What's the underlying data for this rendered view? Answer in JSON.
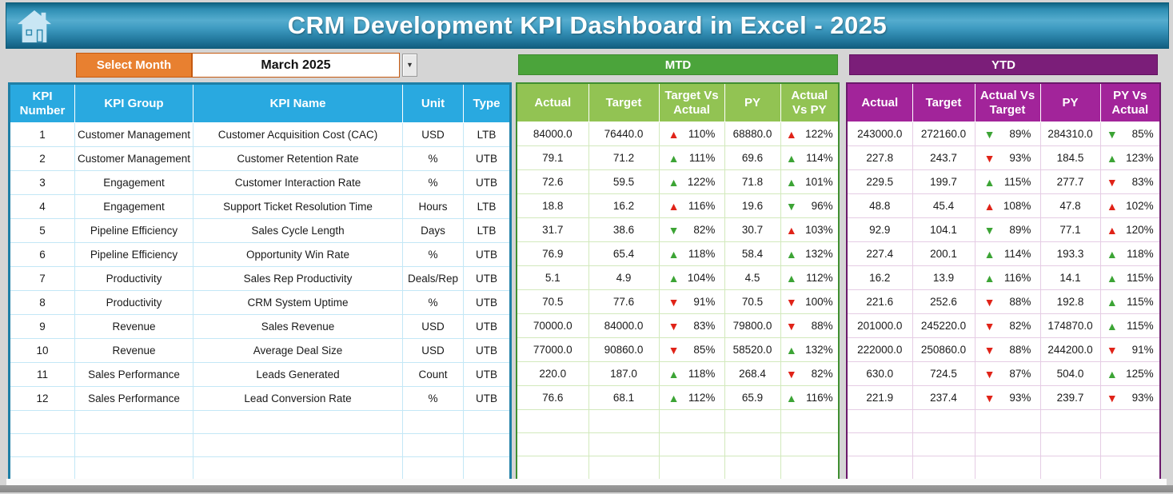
{
  "header": {
    "title": "CRM Development KPI Dashboard in Excel - 2025"
  },
  "controls": {
    "select_month_label": "Select Month",
    "selected_month": "March 2025"
  },
  "sections": {
    "mtd_title": "MTD",
    "ytd_title": "YTD"
  },
  "icons": {
    "home": "home-icon",
    "dropdown": "▼",
    "up_arrow": "▲",
    "down_arrow": "▼"
  },
  "colors": {
    "kpi_header_blue": "#29A9E0",
    "mtd_banner_green": "#4BA43B",
    "mtd_header_green": "#92C353",
    "ytd_banner_purple": "#7B1E79",
    "ytd_header_purple": "#A2249A",
    "select_month_orange": "#E88030",
    "arrow_red": "#E02318",
    "arrow_green": "#3CA435"
  },
  "kpi_table": {
    "headers": [
      "KPI Number",
      "KPI Group",
      "KPI Name",
      "Unit",
      "Type"
    ]
  },
  "mtd_table": {
    "headers": [
      "Actual",
      "Target",
      "Target Vs Actual",
      "PY",
      "Actual Vs PY"
    ]
  },
  "ytd_table": {
    "headers": [
      "Actual",
      "Target",
      "Actual Vs Target",
      "PY",
      "PY Vs Actual"
    ]
  },
  "empty_row_count": 3,
  "rows": [
    {
      "number": "1",
      "group": "Customer Management",
      "name": "Customer Acquisition Cost (CAC)",
      "unit": "USD",
      "type": "LTB",
      "mtd": {
        "actual": "84000.0",
        "target": "76440.0",
        "target_vs_actual": {
          "dir": "up",
          "state": "red",
          "value": "110%"
        },
        "py": "68880.0",
        "actual_vs_py": {
          "dir": "up",
          "state": "red",
          "value": "122%"
        }
      },
      "ytd": {
        "actual": "243000.0",
        "target": "272160.0",
        "actual_vs_target": {
          "dir": "down",
          "state": "green",
          "value": "89%"
        },
        "py": "284310.0",
        "py_vs_actual": {
          "dir": "down",
          "state": "green",
          "value": "85%"
        }
      }
    },
    {
      "number": "2",
      "group": "Customer Management",
      "name": "Customer Retention Rate",
      "unit": "%",
      "type": "UTB",
      "mtd": {
        "actual": "79.1",
        "target": "71.2",
        "target_vs_actual": {
          "dir": "up",
          "state": "green",
          "value": "111%"
        },
        "py": "69.6",
        "actual_vs_py": {
          "dir": "up",
          "state": "green",
          "value": "114%"
        }
      },
      "ytd": {
        "actual": "227.8",
        "target": "243.7",
        "actual_vs_target": {
          "dir": "down",
          "state": "red",
          "value": "93%"
        },
        "py": "184.5",
        "py_vs_actual": {
          "dir": "up",
          "state": "green",
          "value": "123%"
        }
      }
    },
    {
      "number": "3",
      "group": "Engagement",
      "name": "Customer Interaction Rate",
      "unit": "%",
      "type": "UTB",
      "mtd": {
        "actual": "72.6",
        "target": "59.5",
        "target_vs_actual": {
          "dir": "up",
          "state": "green",
          "value": "122%"
        },
        "py": "71.8",
        "actual_vs_py": {
          "dir": "up",
          "state": "green",
          "value": "101%"
        }
      },
      "ytd": {
        "actual": "229.5",
        "target": "199.7",
        "actual_vs_target": {
          "dir": "up",
          "state": "green",
          "value": "115%"
        },
        "py": "277.7",
        "py_vs_actual": {
          "dir": "down",
          "state": "red",
          "value": "83%"
        }
      }
    },
    {
      "number": "4",
      "group": "Engagement",
      "name": "Support Ticket Resolution Time",
      "unit": "Hours",
      "type": "LTB",
      "mtd": {
        "actual": "18.8",
        "target": "16.2",
        "target_vs_actual": {
          "dir": "up",
          "state": "red",
          "value": "116%"
        },
        "py": "19.6",
        "actual_vs_py": {
          "dir": "down",
          "state": "green",
          "value": "96%"
        }
      },
      "ytd": {
        "actual": "48.8",
        "target": "45.4",
        "actual_vs_target": {
          "dir": "up",
          "state": "red",
          "value": "108%"
        },
        "py": "47.8",
        "py_vs_actual": {
          "dir": "up",
          "state": "red",
          "value": "102%"
        }
      }
    },
    {
      "number": "5",
      "group": "Pipeline Efficiency",
      "name": "Sales Cycle Length",
      "unit": "Days",
      "type": "LTB",
      "mtd": {
        "actual": "31.7",
        "target": "38.6",
        "target_vs_actual": {
          "dir": "down",
          "state": "green",
          "value": "82%"
        },
        "py": "30.7",
        "actual_vs_py": {
          "dir": "up",
          "state": "red",
          "value": "103%"
        }
      },
      "ytd": {
        "actual": "92.9",
        "target": "104.1",
        "actual_vs_target": {
          "dir": "down",
          "state": "green",
          "value": "89%"
        },
        "py": "77.1",
        "py_vs_actual": {
          "dir": "up",
          "state": "red",
          "value": "120%"
        }
      }
    },
    {
      "number": "6",
      "group": "Pipeline Efficiency",
      "name": "Opportunity Win Rate",
      "unit": "%",
      "type": "UTB",
      "mtd": {
        "actual": "76.9",
        "target": "65.4",
        "target_vs_actual": {
          "dir": "up",
          "state": "green",
          "value": "118%"
        },
        "py": "58.4",
        "actual_vs_py": {
          "dir": "up",
          "state": "green",
          "value": "132%"
        }
      },
      "ytd": {
        "actual": "227.4",
        "target": "200.1",
        "actual_vs_target": {
          "dir": "up",
          "state": "green",
          "value": "114%"
        },
        "py": "193.3",
        "py_vs_actual": {
          "dir": "up",
          "state": "green",
          "value": "118%"
        }
      }
    },
    {
      "number": "7",
      "group": "Productivity",
      "name": "Sales Rep Productivity",
      "unit": "Deals/Rep",
      "type": "UTB",
      "mtd": {
        "actual": "5.1",
        "target": "4.9",
        "target_vs_actual": {
          "dir": "up",
          "state": "green",
          "value": "104%"
        },
        "py": "4.5",
        "actual_vs_py": {
          "dir": "up",
          "state": "green",
          "value": "112%"
        }
      },
      "ytd": {
        "actual": "16.2",
        "target": "13.9",
        "actual_vs_target": {
          "dir": "up",
          "state": "green",
          "value": "116%"
        },
        "py": "14.1",
        "py_vs_actual": {
          "dir": "up",
          "state": "green",
          "value": "115%"
        }
      }
    },
    {
      "number": "8",
      "group": "Productivity",
      "name": "CRM System Uptime",
      "unit": "%",
      "type": "UTB",
      "mtd": {
        "actual": "70.5",
        "target": "77.6",
        "target_vs_actual": {
          "dir": "down",
          "state": "red",
          "value": "91%"
        },
        "py": "70.5",
        "actual_vs_py": {
          "dir": "down",
          "state": "red",
          "value": "100%"
        }
      },
      "ytd": {
        "actual": "221.6",
        "target": "252.6",
        "actual_vs_target": {
          "dir": "down",
          "state": "red",
          "value": "88%"
        },
        "py": "192.8",
        "py_vs_actual": {
          "dir": "up",
          "state": "green",
          "value": "115%"
        }
      }
    },
    {
      "number": "9",
      "group": "Revenue",
      "name": "Sales Revenue",
      "unit": "USD",
      "type": "UTB",
      "mtd": {
        "actual": "70000.0",
        "target": "84000.0",
        "target_vs_actual": {
          "dir": "down",
          "state": "red",
          "value": "83%"
        },
        "py": "79800.0",
        "actual_vs_py": {
          "dir": "down",
          "state": "red",
          "value": "88%"
        }
      },
      "ytd": {
        "actual": "201000.0",
        "target": "245220.0",
        "actual_vs_target": {
          "dir": "down",
          "state": "red",
          "value": "82%"
        },
        "py": "174870.0",
        "py_vs_actual": {
          "dir": "up",
          "state": "green",
          "value": "115%"
        }
      }
    },
    {
      "number": "10",
      "group": "Revenue",
      "name": "Average Deal Size",
      "unit": "USD",
      "type": "UTB",
      "mtd": {
        "actual": "77000.0",
        "target": "90860.0",
        "target_vs_actual": {
          "dir": "down",
          "state": "red",
          "value": "85%"
        },
        "py": "58520.0",
        "actual_vs_py": {
          "dir": "up",
          "state": "green",
          "value": "132%"
        }
      },
      "ytd": {
        "actual": "222000.0",
        "target": "250860.0",
        "actual_vs_target": {
          "dir": "down",
          "state": "red",
          "value": "88%"
        },
        "py": "244200.0",
        "py_vs_actual": {
          "dir": "down",
          "state": "red",
          "value": "91%"
        }
      }
    },
    {
      "number": "11",
      "group": "Sales Performance",
      "name": "Leads Generated",
      "unit": "Count",
      "type": "UTB",
      "mtd": {
        "actual": "220.0",
        "target": "187.0",
        "target_vs_actual": {
          "dir": "up",
          "state": "green",
          "value": "118%"
        },
        "py": "268.4",
        "actual_vs_py": {
          "dir": "down",
          "state": "red",
          "value": "82%"
        }
      },
      "ytd": {
        "actual": "630.0",
        "target": "724.5",
        "actual_vs_target": {
          "dir": "down",
          "state": "red",
          "value": "87%"
        },
        "py": "504.0",
        "py_vs_actual": {
          "dir": "up",
          "state": "green",
          "value": "125%"
        }
      }
    },
    {
      "number": "12",
      "group": "Sales Performance",
      "name": "Lead Conversion Rate",
      "unit": "%",
      "type": "UTB",
      "mtd": {
        "actual": "76.6",
        "target": "68.1",
        "target_vs_actual": {
          "dir": "up",
          "state": "green",
          "value": "112%"
        },
        "py": "65.9",
        "actual_vs_py": {
          "dir": "up",
          "state": "green",
          "value": "116%"
        }
      },
      "ytd": {
        "actual": "221.9",
        "target": "237.4",
        "actual_vs_target": {
          "dir": "down",
          "state": "red",
          "value": "93%"
        },
        "py": "239.7",
        "py_vs_actual": {
          "dir": "down",
          "state": "red",
          "value": "93%"
        }
      }
    }
  ]
}
